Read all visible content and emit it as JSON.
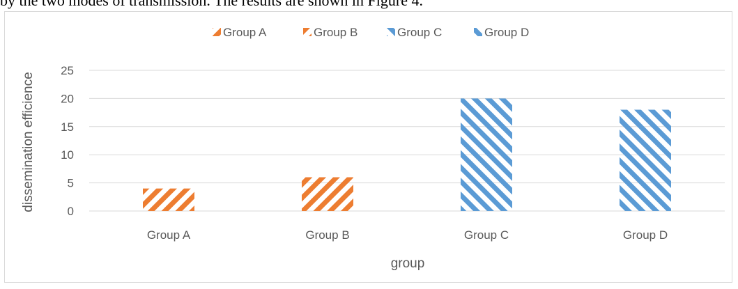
{
  "page": {
    "heading_fragment": "by the two modes of transmission. The results are shown in Figure 4."
  },
  "colors": {
    "orange": "#ed7d31",
    "blue": "#5b9bd5",
    "grid": "#d9d9d9",
    "text": "#595959"
  },
  "chart_data": {
    "type": "bar",
    "title": "",
    "xlabel": "group",
    "ylabel": "dissemination efficience",
    "categories": [
      "Group A",
      "Group B",
      "Group C",
      "Group D"
    ],
    "values": [
      4,
      6,
      20,
      18
    ],
    "ylim": [
      0,
      25
    ],
    "yticks": [
      "0",
      "5",
      "10",
      "15",
      "20",
      "25"
    ],
    "ytick_values": [
      0,
      5,
      10,
      15,
      20,
      25
    ],
    "grid": true,
    "legend_position": "top",
    "legend": [
      {
        "name": "Group A",
        "pattern": "forward-hatch",
        "color": "#ed7d31"
      },
      {
        "name": "Group B",
        "pattern": "forward-hatch",
        "color": "#ed7d31"
      },
      {
        "name": "Group C",
        "pattern": "back-hatch",
        "color": "#5b9bd5"
      },
      {
        "name": "Group D",
        "pattern": "back-hatch",
        "color": "#5b9bd5"
      }
    ],
    "bar_patterns": [
      "forward-hatch",
      "forward-hatch",
      "back-hatch",
      "back-hatch"
    ],
    "bar_colors": [
      "#ed7d31",
      "#ed7d31",
      "#5b9bd5",
      "#5b9bd5"
    ]
  }
}
